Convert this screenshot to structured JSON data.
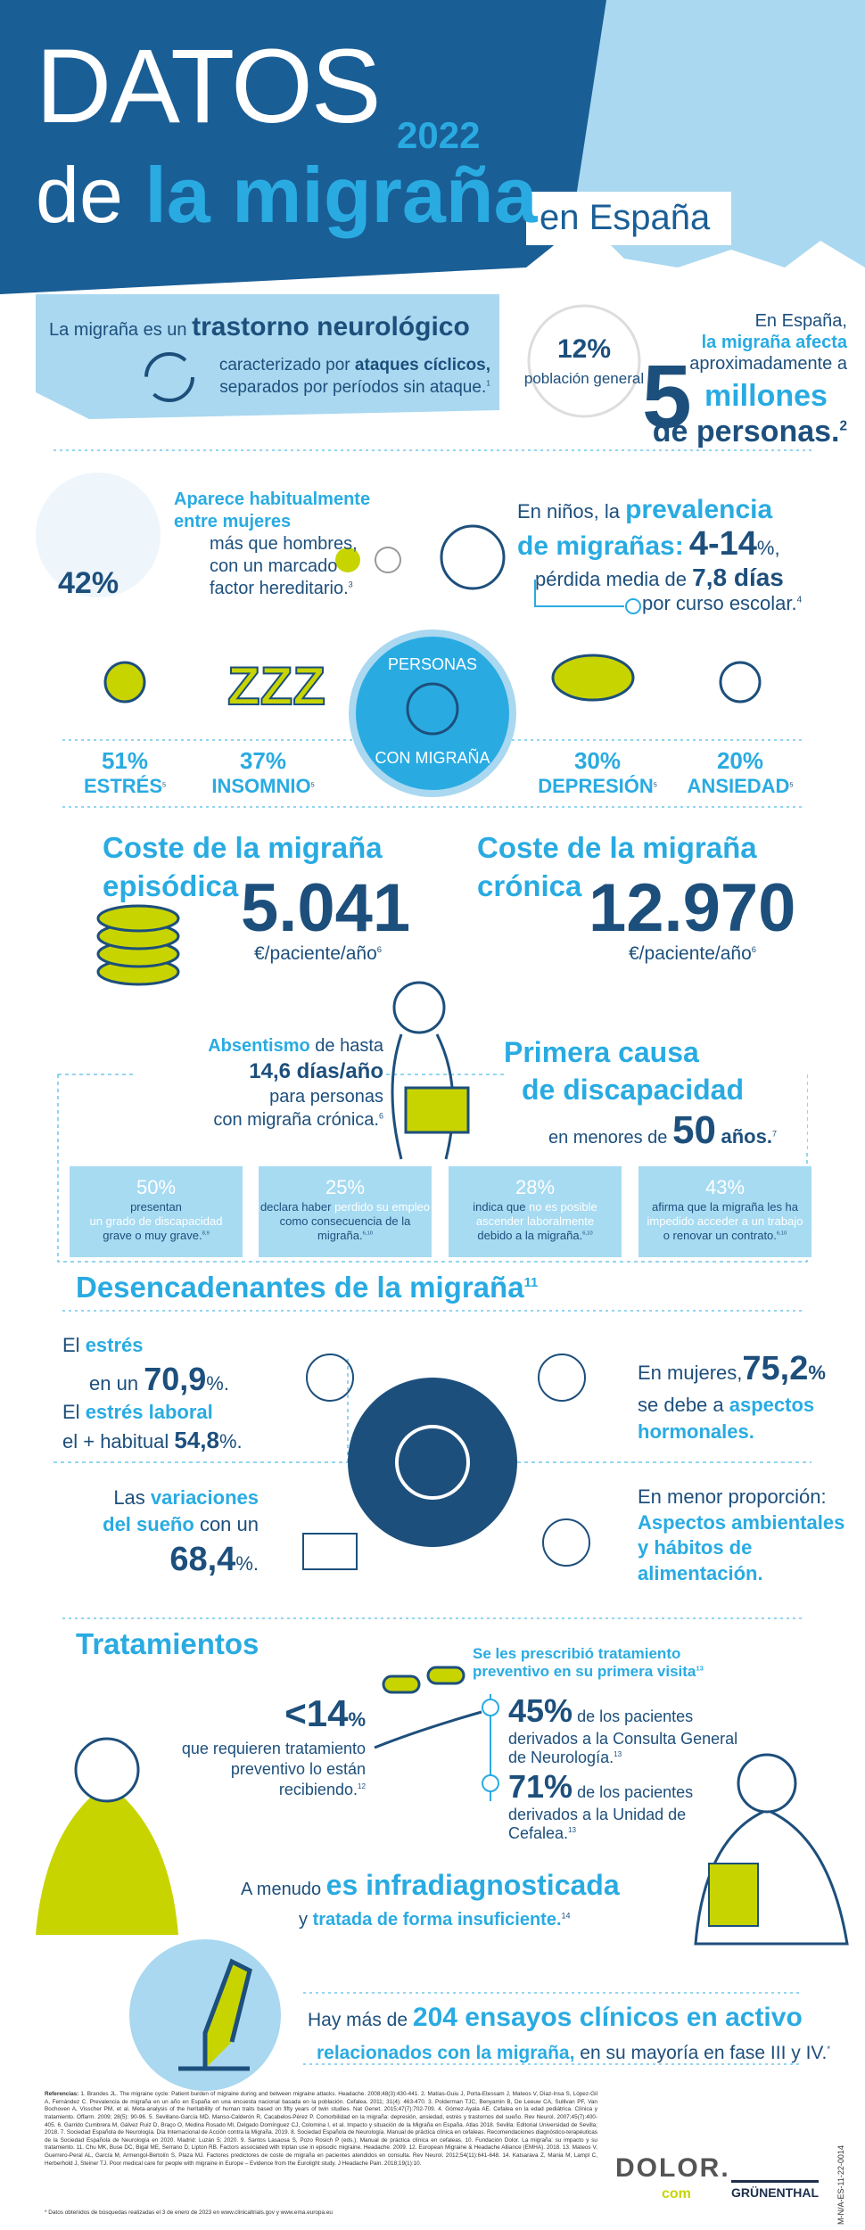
{
  "header": {
    "title_1": "DATOS",
    "year": "2022",
    "title_2a": "de",
    "title_2b": "la migraña",
    "title_3": "en España"
  },
  "intro": {
    "lead": "La migraña es un",
    "strong": "trastorno neurológico",
    "l2a": "caracterizado por",
    "l2b": "ataques cíclicos,",
    "l3": "separados por períodos sin ataque.",
    "ref": "1"
  },
  "prevalence": {
    "pct": "12%",
    "pct_label": "población general",
    "a": "En España,",
    "b": "la migraña afecta",
    "c": "aproximadamente a",
    "num": "5",
    "d": "millones",
    "e": "de personas.",
    "ref": "2"
  },
  "women": {
    "pct": "42%",
    "a": "Aparece habitualmente",
    "b": "entre mujeres",
    "c": "más que hombres,",
    "d": "con un marcado",
    "e": "factor hereditario.",
    "ref": "3"
  },
  "children": {
    "a": "En niños, la",
    "b": "prevalencia",
    "c": "de migrañas:",
    "range": "4-14",
    "unit": "%,",
    "d": "pérdida media de",
    "days": "7,8 días",
    "e": "por curso escolar.",
    "ref": "4"
  },
  "comorbid": {
    "center_top": "PERSONAS",
    "center_bottom": "CON MIGRAÑA",
    "items": [
      {
        "pct": "51%",
        "label": "ESTRÉS",
        "ref": "5"
      },
      {
        "pct": "37%",
        "label": "INSOMNIO",
        "ref": "5"
      },
      {
        "pct": "30%",
        "label": "DEPRESIÓN",
        "ref": "5"
      },
      {
        "pct": "20%",
        "label": "ANSIEDAD",
        "ref": "5"
      }
    ]
  },
  "costs": [
    {
      "title_1": "Coste de la migraña",
      "title_2": "episódica",
      "value": "5.041",
      "unit": "€/paciente/año",
      "ref": "6"
    },
    {
      "title_1": "Coste de la migraña",
      "title_2": "crónica",
      "value": "12.970",
      "unit": "€/paciente/año",
      "ref": "6"
    }
  ],
  "absent": {
    "a": "Absentismo",
    "b": "de hasta",
    "c": "14,6 días/año",
    "d": "para personas",
    "e": "con migraña crónica.",
    "ref": "6"
  },
  "disability": {
    "a": "Primera causa",
    "b": "de discapacidad",
    "c": "en menores de",
    "num": "50",
    "d": "años.",
    "ref": "7"
  },
  "boxes": [
    {
      "pct": "50%",
      "pre": "presentan",
      "strong": "un grado de discapacidad",
      "post": "grave o muy grave.",
      "ref": "8,9"
    },
    {
      "pct": "25%",
      "pre": "declara haber",
      "strong": "perdido su empleo",
      "post": "como consecuencia de la migraña.",
      "ref": "6,10"
    },
    {
      "pct": "28%",
      "pre": "indica que",
      "strong": "no es posible ascender laboralmente",
      "post": "debido a la migraña.",
      "ref": "6,10"
    },
    {
      "pct": "43%",
      "pre": "afirma que la migraña les ha",
      "strong": "impedido acceder a un trabajo",
      "post": "o renovar un contrato.",
      "ref": "6,10"
    }
  ],
  "triggers": {
    "title": "Desencadenantes de la migraña",
    "ref": "11",
    "stress": {
      "a": "El",
      "b": "estrés",
      "c": "en un",
      "num": "70,9",
      "unit": "%.",
      "d": "El",
      "e": "estrés laboral",
      "f": "el + habitual",
      "num2": "54,8",
      "unit2": "%."
    },
    "hormones": {
      "a": "En mujeres,",
      "num": "75,2",
      "unit": "%",
      "b": "se debe a",
      "c": "aspectos hormonales."
    },
    "sleep": {
      "a": "Las",
      "b": "variaciones del sueño",
      "c": "con un",
      "num": "68,4",
      "unit": "%."
    },
    "environment": {
      "a": "En menor proporción:",
      "b": "Aspectos ambientales y hábitos de alimentación."
    }
  },
  "treatments": {
    "title": "Tratamientos",
    "num": "<14",
    "unit": "%",
    "text": "que requieren tratamiento preventivo lo están recibiendo.",
    "ref": "12",
    "first_visit": "Se les prescribió tratamiento preventivo en su primera visita",
    "first_ref": "13",
    "items": [
      {
        "pct": "45%",
        "text": "de los pacientes derivados a la Consulta General de Neurología.",
        "ref": "13"
      },
      {
        "pct": "71%",
        "text": "de los pacientes derivados a la Unidad de Cefalea.",
        "ref": "13"
      }
    ]
  },
  "underdiagnosis": {
    "a": "A menudo",
    "b": "es infradiagnosticada",
    "c": "y",
    "d": "tratada de forma insuficiente.",
    "ref": "14"
  },
  "trials": {
    "a": "Hay más de",
    "b": "204 ensayos clínicos en activo",
    "c": "relacionados con la migraña,",
    "d": "en su mayoría en fase III y IV.",
    "ref": "*"
  },
  "references": {
    "label": "Referencias:",
    "text": "1. Brandes JL. The migraine cycle: Patient burden of migraine during and between migraine attacks. Headache. 2008;48(3):430-441. 2. Matías-Guiu J, Porta-Etessam J, Mateos V, Díaz-Insa S, López-Gil A, Fernández C. Prevalencia de migraña en un año en España en una encuesta nacional basada en la población. Cefalea. 2011; 31(4): 463-470. 3. Polderman TJC, Benyamin B, De Leeuw CA, Sullivan PF, Van Bochoven A, Visscher PM, et al. Meta-analysis of the heritability of human traits based on fifty years of twin studies. Nat Genet. 2015;47(7):702-709. 4. Gómez-Ayala AE. Cefalea en la edad pediátrica. Clínica y tratamiento. Offarm. 2009; 28(5): 90-96. 5. Sevillano-García MD, Manso-Calderón R, Cacabelos-Pérez P. Comorbilidad en la migraña: depresión, ansiedad, estrés y trastornos del sueño. Rev Neurol. 2007;45(7):400-405. 6. Garrido Cumbrera M, Gálvez Ruiz D, Braço O, Medina Rosado MI, Delgado Domínguez CJ, Colomina I, et al. Impacto y situación de la Migraña en España. Atlas 2018. Sevilla: Editorial Universidad de Sevilla; 2018. 7. Sociedad Española de Neurología. Día Internacional de Acción contra la Migraña. 2019. 8. Sociedad Española de Neurología. Manual de práctica clínica en cefaleas. Recomendaciones diagnóstico-terapéuticas de la Sociedad Española de Neurología en 2020. Madrid: Luzán 5; 2020. 9. Santos Lasaosa S, Pozo Rosich P (eds.). Manual de práctica clínica en cefaleas. 10. Fundación Dolor. La migraña: su impacto y su tratamiento. 11. Chu MK, Buse DC, Bigal ME, Serrano D, Lipton RB. Factors associated with triptan use in episodic migraine. Headache. 2009. 12. European Migraine & Headache Alliance (EMHA). 2018. 13. Mateos V, Guerrero-Peral AL, García M, Armengol-Bertolín S, Plaza MJ. Factores predictores de coste de migraña en pacientes atendidos en consulta. Rev Neurol. 2012;54(11):641-648. 14. Katsarava Z, Mania M, Lampl C, Herberhold J, Steiner TJ. Poor medical care for people with migraine in Europe – Evidence from the Eurolight study. J Headache Pain. 2018;19(1):10.",
    "footnote": "* Datos obtenidos de búsquedas realizadas el 3 de enero de 2023 en www.clinicaltrials.gov y www.ema.europa.eu"
  },
  "footer": {
    "brand_a": "DOLOR.",
    "brand_b": "com",
    "company": "GRÜNENTHAL",
    "code": "M-N/A-ES-11-22-0014"
  }
}
